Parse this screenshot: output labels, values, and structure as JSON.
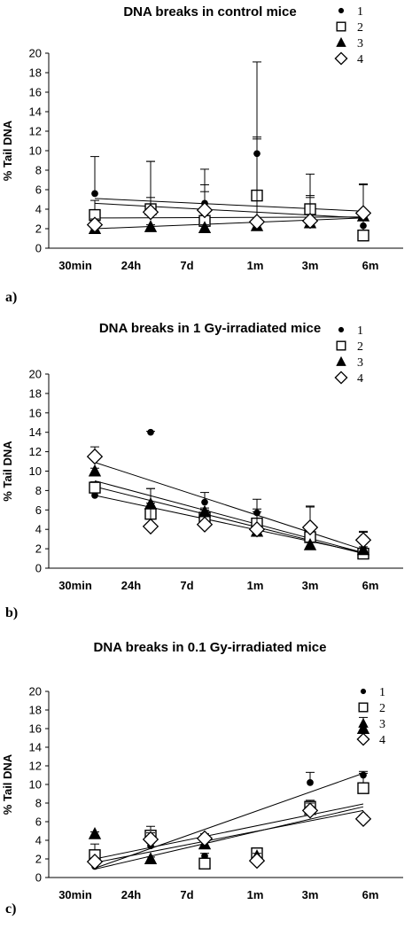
{
  "chart_data": [
    {
      "type": "scatter",
      "title": "DNA breaks in control mice",
      "ylabel": "% Tail DNA",
      "xlabel": "",
      "categories": [
        "30min",
        "24h",
        "7d",
        "1m",
        "3m",
        "6m"
      ],
      "ylim": [
        0,
        20
      ],
      "yticks": [
        "0",
        "2",
        "4",
        "6",
        "8",
        "10",
        "12",
        "14",
        "16",
        "18",
        "20"
      ],
      "panel_label": "a)",
      "series": [
        {
          "name": "1",
          "marker": "circle",
          "values": [
            5.6,
            3.9,
            4.6,
            9.7,
            2.6,
            2.3
          ],
          "err_up": [
            3.8,
            5.0,
            3.5,
            9.4,
            2.6,
            4.2
          ],
          "trend": [
            4.6,
            3.1
          ]
        },
        {
          "name": "2",
          "marker": "square",
          "values": [
            3.4,
            4.0,
            2.8,
            5.4,
            4.0,
            1.3
          ],
          "err_up": [
            1.5,
            1.2,
            3.0,
            6.0,
            3.6,
            5.2
          ],
          "trend": [
            3.1,
            3.2
          ]
        },
        {
          "name": "3",
          "marker": "triangle",
          "values": [
            2.0,
            2.2,
            2.1,
            2.3,
            2.6,
            3.3
          ],
          "err_up": [
            0.2,
            0.2,
            0.3,
            0.3,
            0.4,
            0.3
          ],
          "trend": [
            2.0,
            3.1
          ]
        },
        {
          "name": "4",
          "marker": "diamond",
          "values": [
            2.4,
            3.7,
            3.9,
            2.7,
            2.8,
            3.6
          ],
          "err_up": [
            0.6,
            5.2,
            2.6,
            8.5,
            2.6,
            3.0
          ],
          "trend": [
            5.1,
            3.8
          ]
        }
      ]
    },
    {
      "type": "scatter",
      "title": "DNA breaks in 1 Gy-irradiated mice",
      "ylabel": "% Tail DNA",
      "xlabel": "",
      "categories": [
        "30min",
        "24h",
        "7d",
        "1m",
        "3m",
        "6m"
      ],
      "ylim": [
        0,
        20
      ],
      "yticks": [
        "0",
        "2",
        "4",
        "6",
        "8",
        "10",
        "12",
        "14",
        "16",
        "18",
        "20"
      ],
      "panel_label": "b)",
      "series": [
        {
          "name": "1",
          "marker": "circle",
          "values": [
            7.5,
            14.0,
            6.8,
            5.7,
            3.3,
            2.0
          ],
          "err_up": [
            0.6,
            0.1,
            1.0,
            1.4,
            3.0,
            1.7
          ],
          "trend": [
            7.5,
            1.6
          ]
        },
        {
          "name": "2",
          "marker": "square",
          "values": [
            8.3,
            5.6,
            5.2,
            4.6,
            3.2,
            1.5
          ],
          "err_up": [
            0.6,
            2.6,
            0.8,
            1.5,
            0.4,
            0.3
          ],
          "trend": [
            8.4,
            1.5
          ]
        },
        {
          "name": "3",
          "marker": "triangle",
          "values": [
            10.0,
            6.6,
            5.8,
            3.8,
            2.4,
            1.9
          ],
          "err_up": [
            0.3,
            1.6,
            0.4,
            0.4,
            0.3,
            0.3
          ],
          "trend": [
            9.0,
            1.6
          ]
        },
        {
          "name": "4",
          "marker": "diamond",
          "values": [
            11.5,
            4.3,
            4.5,
            4.0,
            4.2,
            2.9
          ],
          "err_up": [
            1.0,
            2.4,
            0.9,
            1.8,
            2.2,
            0.9
          ],
          "trend": [
            10.9,
            1.9
          ]
        }
      ]
    },
    {
      "type": "scatter",
      "title": "DNA breaks in 0.1 Gy-irradiated mice",
      "ylabel": "% Tail DNA",
      "xlabel": "",
      "categories": [
        "30min",
        "24h",
        "7d",
        "1m",
        "3m",
        "6m"
      ],
      "ylim": [
        0,
        20
      ],
      "yticks": [
        "0",
        "2",
        "4",
        "6",
        "8",
        "10",
        "12",
        "14",
        "16",
        "18",
        "20"
      ],
      "panel_label": "c)",
      "series": [
        {
          "name": "1",
          "marker": "circle",
          "values": [
            1.2,
            3.4,
            2.3,
            2.2,
            10.2,
            11.0
          ],
          "err_up": [
            0.3,
            0.3,
            0.3,
            0.7,
            1.1,
            0.4
          ],
          "trend": [
            1.0,
            11.2
          ]
        },
        {
          "name": "2",
          "marker": "square",
          "values": [
            2.4,
            4.5,
            1.5,
            2.6,
            7.6,
            9.6
          ],
          "err_up": [
            1.2,
            1.0,
            0.3,
            0.5,
            0.7,
            1.6
          ],
          "trend": [
            2.0,
            7.9
          ]
        },
        {
          "name": "3",
          "marker": "triangle",
          "values": [
            4.7,
            2.0,
            3.6,
            2.3,
            7.3,
            16.0
          ],
          "err_up": [
            0.2,
            0.2,
            0.3,
            0.3,
            0.3,
            1.2
          ],
          "trend": [
            0.9,
            7.6
          ]
        },
        {
          "name": "4",
          "marker": "diamond",
          "values": [
            1.7,
            4.1,
            4.2,
            1.8,
            7.2,
            6.3
          ],
          "err_up": [
            0.4,
            0.7,
            0.5,
            0.4,
            0.8,
            0.4
          ],
          "trend": [
            1.6,
            7.2
          ]
        }
      ]
    }
  ]
}
